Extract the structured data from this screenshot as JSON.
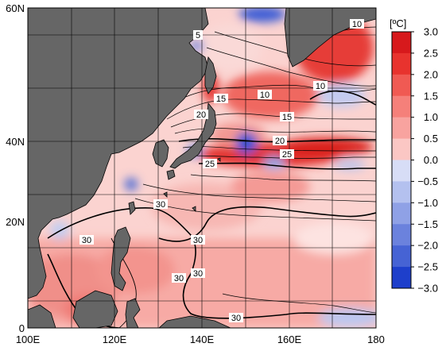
{
  "map": {
    "lat_labels": [
      "60N",
      "40N",
      "20N",
      "0"
    ],
    "lon_labels": [
      "100E",
      "120E",
      "140E",
      "160E",
      "180"
    ],
    "contour_labels": [
      "5",
      "10",
      "10",
      "10",
      "15",
      "15",
      "20",
      "20",
      "25",
      "25",
      "30",
      "30",
      "30",
      "30",
      "30",
      "30"
    ],
    "colors": {
      "land": "#666666",
      "warm_strong": "#e8231f",
      "warm": "#f7a6a2",
      "neutral": "#ffffff",
      "cool": "#9fb3ec",
      "cool_strong": "#2a4bd8"
    }
  },
  "colorbar": {
    "unit": "[ºC]",
    "ticks": [
      "3.0",
      "2.5",
      "2.0",
      "1.5",
      "1.0",
      "0.5",
      "0.0",
      "−0.5",
      "−1.0",
      "−1.5",
      "−2.0",
      "−2.5",
      "−3.0"
    ],
    "colors": [
      "#d7191c",
      "#e8332e",
      "#f05a53",
      "#f5807a",
      "#f8a39f",
      "#fbc7c4",
      "#ffffff",
      "#d7ddf6",
      "#b4c1ef",
      "#8fa1e6",
      "#6b82dd",
      "#4663d4",
      "#1e3fcb"
    ]
  }
}
